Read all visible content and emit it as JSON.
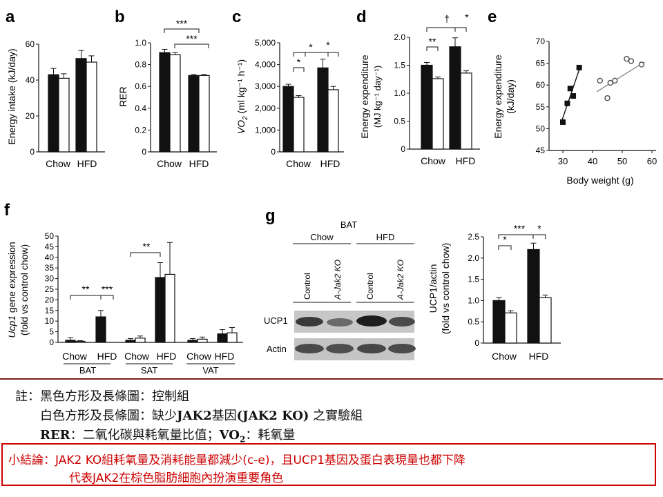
{
  "panels": {
    "a": {
      "letter": "a",
      "ylabel": "Energy intake (kJ/day)",
      "ticks": [
        "0",
        "20",
        "40",
        "60"
      ],
      "groups": [
        "Chow",
        "HFD"
      ]
    },
    "b": {
      "letter": "b",
      "ylabel": "RER",
      "ticks": [
        "0",
        "0.2",
        "0.4",
        "0.6",
        "0.8",
        "1.0"
      ],
      "groups": [
        "Chow",
        "HFD"
      ],
      "sig": [
        "***",
        "***"
      ]
    },
    "c": {
      "letter": "c",
      "ylabel_main": "VO",
      "ylabel_sub": "2",
      "ylabel_rest": " (ml kg⁻¹ h⁻¹)",
      "ticks": [
        "0",
        "1,000",
        "2,000",
        "3,000",
        "4,000",
        "5,000"
      ],
      "groups": [
        "Chow",
        "HFD"
      ],
      "sig": [
        "*",
        "*",
        "*"
      ]
    },
    "d": {
      "letter": "d",
      "ylabel1": "Energy expenditure",
      "ylabel2": "(MJ kg⁻¹ day⁻¹)",
      "ticks": [
        "0",
        "0.5",
        "1.0",
        "1.5",
        "2.0"
      ],
      "groups": [
        "Chow",
        "HFD"
      ],
      "sig": [
        "**",
        "†",
        "*"
      ]
    },
    "e": {
      "letter": "e",
      "ylabel1": "Energy expenditure",
      "ylabel2": "(kJ/day)",
      "xlabel": "Body weight (g)",
      "yticks": [
        "45",
        "50",
        "55",
        "60",
        "65",
        "70"
      ],
      "xticks": [
        "30",
        "40",
        "50",
        "60"
      ]
    },
    "f": {
      "letter": "f",
      "ylabel_gene": "Ucp1",
      "ylabel1": " gene expression",
      "ylabel2": "(fold vs control chow)",
      "ticks": [
        "0",
        "5",
        "10",
        "15",
        "20",
        "25",
        "30",
        "35",
        "40",
        "45",
        "50"
      ],
      "groups": [
        "Chow",
        "HFD",
        "Chow",
        "HFD",
        "Chow",
        "HFD"
      ],
      "tissues": [
        "BAT",
        "SAT",
        "VAT"
      ],
      "sig": [
        "**",
        "***",
        "**"
      ]
    },
    "g": {
      "letter": "g",
      "blot_title": "BAT",
      "blot_groups": [
        "Chow",
        "HFD"
      ],
      "lanes": [
        "Control",
        "A-Jak2 KO",
        "Control",
        "A-Jak2 KO"
      ],
      "rows": [
        "UCP1",
        "Actin"
      ],
      "ylabel1": "UCP1/actin",
      "ylabel2": "(fold vs control chow)",
      "ticks": [
        "0",
        "0.5",
        "1.0",
        "1.5",
        "2.0",
        "2.5"
      ],
      "groups": [
        "Chow",
        "HFD"
      ],
      "sig": [
        "*",
        "***",
        "*"
      ]
    }
  },
  "chart_data": [
    {
      "type": "bar",
      "title": "",
      "ylabel": "Energy intake (kJ/day)",
      "categories": [
        "Chow",
        "HFD"
      ],
      "ylim": [
        0,
        60
      ],
      "series": [
        {
          "values": [
            43,
            52
          ]
        },
        {
          "values": [
            41,
            50
          ]
        }
      ]
    },
    {
      "type": "bar",
      "title": "",
      "ylabel": "RER",
      "categories": [
        "Chow",
        "HFD"
      ],
      "ylim": [
        0,
        1.0
      ],
      "series": [
        {
          "values": [
            0.91,
            0.7
          ]
        },
        {
          "values": [
            0.89,
            0.7
          ]
        }
      ]
    },
    {
      "type": "bar",
      "title": "",
      "ylabel": "VO2 (ml kg-1 h-1)",
      "categories": [
        "Chow",
        "HFD"
      ],
      "ylim": [
        0,
        5000
      ],
      "series": [
        {
          "values": [
            3000,
            3850
          ]
        },
        {
          "values": [
            2500,
            2850
          ]
        }
      ]
    },
    {
      "type": "bar",
      "title": "",
      "ylabel": "Energy expenditure (MJ kg-1 day-1)",
      "categories": [
        "Chow",
        "HFD"
      ],
      "ylim": [
        0,
        2.0
      ],
      "series": [
        {
          "values": [
            1.5,
            1.83
          ]
        },
        {
          "values": [
            1.26,
            1.36
          ]
        }
      ]
    },
    {
      "type": "scatter",
      "title": "",
      "ylabel": "Energy expenditure (kJ/day)",
      "xlabel": "Body weight (g)",
      "xlim": [
        25,
        60
      ],
      "ylim": [
        45,
        70
      ],
      "series": [
        {
          "marker": "filled-square",
          "x": [
            30.0,
            31.5,
            32.5,
            33.5,
            35.5
          ],
          "y": [
            51.5,
            55.8,
            59.2,
            57.5,
            64.0
          ]
        },
        {
          "marker": "open-circle",
          "x": [
            42.5,
            45.0,
            46.0,
            47.5,
            51.5,
            53.0,
            56.5
          ],
          "y": [
            61.0,
            57.0,
            60.5,
            61.0,
            66.0,
            65.5,
            64.7
          ]
        }
      ]
    },
    {
      "type": "bar",
      "title": "",
      "ylabel": "Ucp1 gene expression (fold vs control chow)",
      "categories": [
        "BAT Chow",
        "BAT HFD",
        "SAT Chow",
        "SAT HFD",
        "VAT Chow",
        "VAT HFD"
      ],
      "ylim": [
        0,
        50
      ],
      "series": [
        {
          "values": [
            1,
            12,
            1,
            30.5,
            1,
            4
          ]
        },
        {
          "values": [
            0.5,
            0,
            2,
            32,
            1.5,
            4.5
          ]
        }
      ]
    },
    {
      "type": "bar",
      "title": "",
      "ylabel": "UCP1/actin (fold vs control chow)",
      "categories": [
        "Chow",
        "HFD"
      ],
      "ylim": [
        0,
        2.5
      ],
      "series": [
        {
          "values": [
            1.0,
            2.2
          ]
        },
        {
          "values": [
            0.71,
            1.07
          ]
        }
      ]
    }
  ],
  "notes": {
    "prefix": "註：",
    "line1": "黑色方形及長條圖：控制組",
    "line2_a": "白色方形及長條圖：缺少",
    "line2_b": "JAK2",
    "line2_c": "基因",
    "line2_d": "(JAK2 KO)",
    "line2_e": " 之實驗組",
    "line3_a": "RER",
    "line3_b": "：二氧化碳與耗氧量比值；",
    "line3_c": "VO",
    "line3_d": "2",
    "line3_e": "：耗氧量"
  },
  "conclusion": {
    "line1": "小結論：JAK2 KO組耗氧量及消耗能量都減少(c-e)，且UCP1基因及蛋白表現量也都下降",
    "line2": "代表JAK2在棕色脂肪細胞內扮演重要角色"
  },
  "colors": {
    "control": "#111111",
    "ko": "#ffffff",
    "rule": "#7b1c1c",
    "conclusion": "#cc0000"
  }
}
